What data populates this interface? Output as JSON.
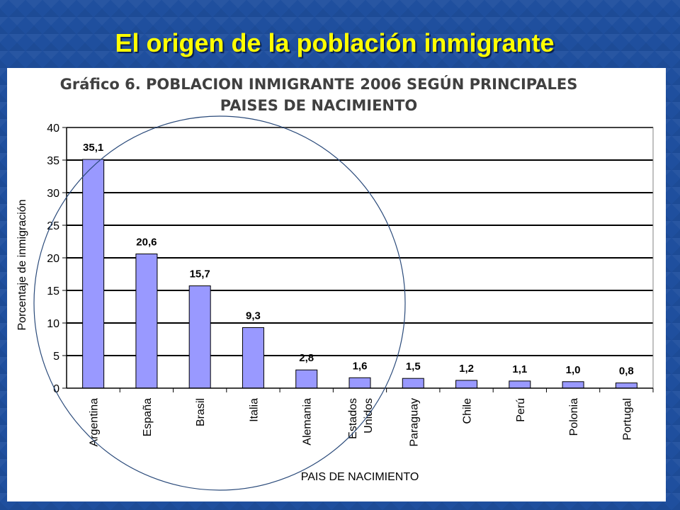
{
  "slide": {
    "title": "El origen de la población inmigrante",
    "title_color": "#ffff00",
    "background_color": "#1f4f9e"
  },
  "chart_data": {
    "type": "bar",
    "title_lines": [
      "Gráfico 6. POBLACION INMIGRANTE 2006 SEGÚN PRINCIPALES",
      "PAISES DE NACIMIENTO"
    ],
    "xlabel": "PAIS DE NACIMIENTO",
    "ylabel": "Porcentaje de inmigración",
    "ylim": [
      0,
      40
    ],
    "yticks": [
      "0",
      "5",
      "10",
      "15",
      "20",
      "25",
      "30",
      "35",
      "40"
    ],
    "categories": [
      [
        "Argentina"
      ],
      [
        "España"
      ],
      [
        "Brasil"
      ],
      [
        "Italia"
      ],
      [
        "Alemania"
      ],
      [
        "Estados",
        "Unidos"
      ],
      [
        "Paraguay"
      ],
      [
        "Chile"
      ],
      [
        "Perú"
      ],
      [
        "Polonia"
      ],
      [
        "Portugal"
      ]
    ],
    "values": [
      35.1,
      20.6,
      15.7,
      9.3,
      2.8,
      1.6,
      1.5,
      1.2,
      1.1,
      1.0,
      0.8
    ],
    "value_labels": [
      "35,1",
      "20,6",
      "15,7",
      "9,3",
      "2,8",
      "1,6",
      "1,5",
      "1,2",
      "1,1",
      "1,0",
      "0,8"
    ],
    "bar_color": "#9999ff",
    "grid": true,
    "legend": "none",
    "annotation": "circle around Argentina, España, Brasil, Italia"
  }
}
